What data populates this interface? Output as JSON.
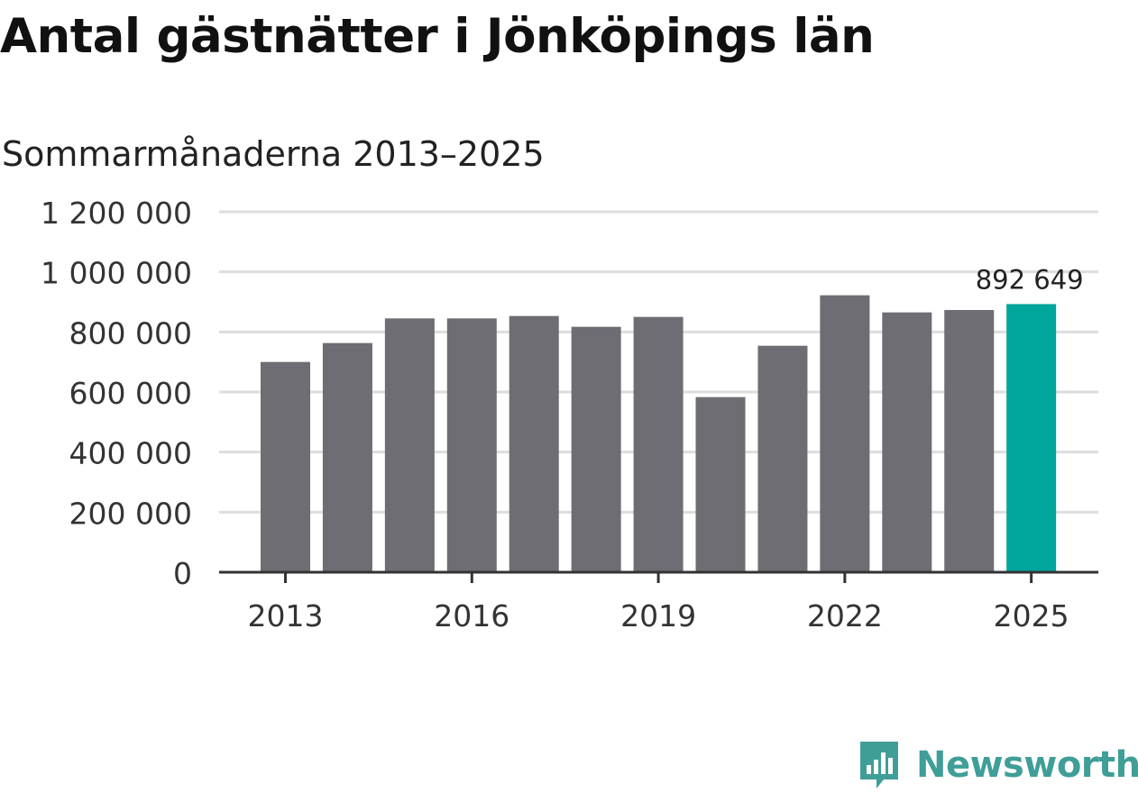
{
  "title": "Antal gästnätter i Jönköpings län",
  "subtitle": "Sommarmånaderna 2013–2025",
  "brand": {
    "name": "Newsworthy",
    "icon": "newsworthy-logo-icon",
    "color": "#3f9e98"
  },
  "colors": {
    "bar": "#6e6d73",
    "highlight": "#00a59b",
    "grid": "#dddddd",
    "axis": "#333333"
  },
  "chart_data": {
    "type": "bar",
    "categories": [
      "2013",
      "2014",
      "2015",
      "2016",
      "2017",
      "2018",
      "2019",
      "2020",
      "2021",
      "2022",
      "2023",
      "2024",
      "2025"
    ],
    "values": [
      700000,
      763000,
      845000,
      845000,
      853000,
      817000,
      850000,
      583000,
      754000,
      922000,
      865000,
      873000,
      892649
    ],
    "highlight_index": 12,
    "data_labels": [
      {
        "index": 12,
        "text": "892 649"
      }
    ],
    "x_tick_labels": [
      "2013",
      "2016",
      "2019",
      "2022",
      "2025"
    ],
    "y_ticks": [
      0,
      200000,
      400000,
      600000,
      800000,
      1000000,
      1200000
    ],
    "y_tick_labels": [
      "0",
      "200 000",
      "400 000",
      "600 000",
      "800 000",
      "1 000 000",
      "1 200 000"
    ],
    "ylim": [
      0,
      1200000
    ],
    "grid": true,
    "legend": "none"
  }
}
